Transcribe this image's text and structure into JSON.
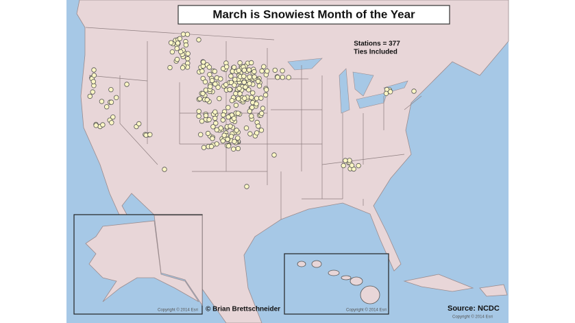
{
  "title": "March is Snowiest Month of the Year",
  "stations_note": "Stations = 377",
  "ties_note": "Ties Included",
  "credit": "© Brian Brettschneider",
  "source": "Source: NCDC",
  "copyrights": [
    "Copyright © 2014 Esri",
    "Copyright © 2014 Esri",
    "Copyright © 2014 Esri"
  ]
}
